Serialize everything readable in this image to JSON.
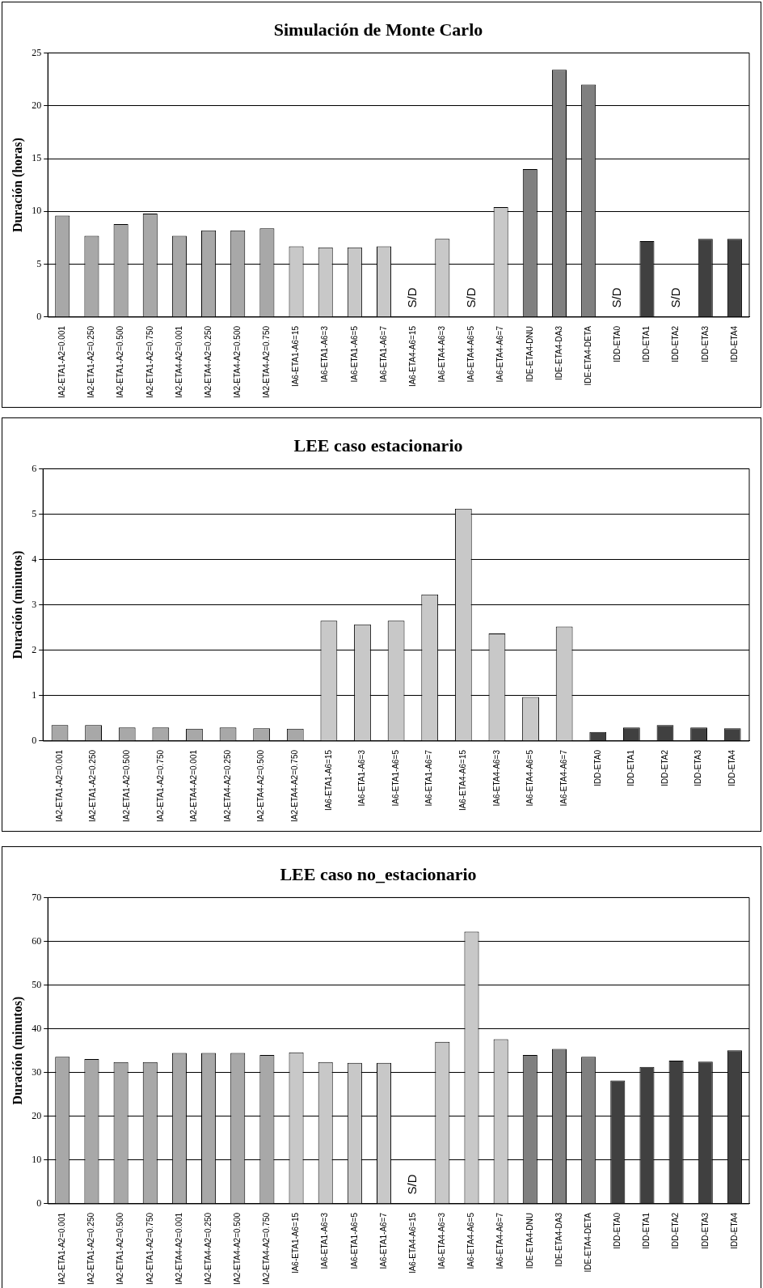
{
  "chart_data": [
    {
      "type": "bar",
      "title": "Simulación de Monte Carlo",
      "ylabel": "Duración (horas)",
      "categories": [
        "IA2-ETA1-A2=0.001",
        "IA2-ETA1-A2=0.250",
        "IA2-ETA1-A2=0.500",
        "IA2-ETA1-A2=0.750",
        "IA2-ETA4-A2=0.001",
        "IA2-ETA4-A2=0.250",
        "IA2-ETA4-A2=0.500",
        "IA2-ETA4-A2=0.750",
        "IA6-ETA1-A6=15",
        "IA6-ETA1-A6=3",
        "IA6-ETA1-A6=5",
        "IA6-ETA1-A6=7",
        "IA6-ETA4-A6=15",
        "IA6-ETA4-A6=3",
        "IA6-ETA4-A6=5",
        "IA6-ETA4-A6=7",
        "IDE-ETA4-DNU",
        "IDE-ETA4-DA3",
        "IDE-ETA4-DETA",
        "IDD-ETA0",
        "IDD-ETA1",
        "IDD-ETA2",
        "IDD-ETA3",
        "IDD-ETA4"
      ],
      "values": [
        9.6,
        7.7,
        8.8,
        9.8,
        7.7,
        8.2,
        8.2,
        8.4,
        6.7,
        6.6,
        6.6,
        6.7,
        null,
        7.4,
        null,
        10.4,
        14.0,
        23.4,
        22.0,
        null,
        7.2,
        null,
        7.4,
        7.4
      ],
      "colors": [
        "#a8a8a8",
        "#a8a8a8",
        "#a8a8a8",
        "#a8a8a8",
        "#a8a8a8",
        "#a8a8a8",
        "#a8a8a8",
        "#a8a8a8",
        "#c8c8c8",
        "#c8c8c8",
        "#c8c8c8",
        "#c8c8c8",
        "#c8c8c8",
        "#c8c8c8",
        "#c8c8c8",
        "#c8c8c8",
        "#808080",
        "#808080",
        "#808080",
        "#404040",
        "#404040",
        "#404040",
        "#404040",
        "#404040"
      ],
      "value_labels": [
        null,
        null,
        null,
        null,
        null,
        null,
        null,
        null,
        null,
        null,
        null,
        null,
        "S/D",
        null,
        "S/D",
        null,
        null,
        null,
        null,
        "S/D",
        null,
        "S/D",
        null,
        null
      ],
      "ylim": [
        0,
        25
      ],
      "yticks": [
        0,
        5,
        10,
        15,
        20,
        25
      ],
      "grid": "y"
    },
    {
      "type": "bar",
      "title": "LEE caso estacionario",
      "ylabel": "Duración (minutos)",
      "categories": [
        "IA2-ETA1-A2=0.001",
        "IA2-ETA1-A2=0.250",
        "IA2-ETA1-A2=0.500",
        "IA2-ETA1-A2=0.750",
        "IA2-ETA4-A2=0.001",
        "IA2-ETA4-A2=0.250",
        "IA2-ETA4-A2=0.500",
        "IA2-ETA4-A2=0.750",
        "IA6-ETA1-A6=15",
        "IA6-ETA1-A6=3",
        "IA6-ETA1-A6=5",
        "IA6-ETA1-A6=7",
        "IA6-ETA4-A6=15",
        "IA6-ETA4-A6=3",
        "IA6-ETA4-A6=5",
        "IA6-ETA4-A6=7",
        "IDD-ETA0",
        "IDD-ETA1",
        "IDD-ETA2",
        "IDD-ETA3",
        "IDD-ETA4"
      ],
      "values": [
        0.35,
        0.35,
        0.3,
        0.3,
        0.27,
        0.3,
        0.28,
        0.27,
        2.65,
        2.57,
        2.65,
        3.23,
        5.12,
        2.37,
        0.97,
        2.52,
        0.2,
        0.3,
        0.35,
        0.3,
        0.28
      ],
      "colors": [
        "#a8a8a8",
        "#a8a8a8",
        "#a8a8a8",
        "#a8a8a8",
        "#a8a8a8",
        "#a8a8a8",
        "#a8a8a8",
        "#a8a8a8",
        "#c8c8c8",
        "#c8c8c8",
        "#c8c8c8",
        "#c8c8c8",
        "#c8c8c8",
        "#c8c8c8",
        "#c8c8c8",
        "#c8c8c8",
        "#404040",
        "#404040",
        "#404040",
        "#404040",
        "#404040"
      ],
      "ylim": [
        0,
        6
      ],
      "yticks": [
        0,
        1,
        2,
        3,
        4,
        5,
        6
      ],
      "grid": "y"
    },
    {
      "type": "bar",
      "title": "LEE caso no_estacionario",
      "ylabel": "Duración (minutos)",
      "categories": [
        "IA2-ETA1-A2=0.001",
        "IA2-ETA1-A2=0.250",
        "IA2-ETA1-A2=0.500",
        "IA2-ETA1-A2=0.750",
        "IA2-ETA4-A2=0.001",
        "IA2-ETA4-A2=0.250",
        "IA2-ETA4-A2=0.500",
        "IA2-ETA4-A2=0.750",
        "IA6-ETA1-A6=15",
        "IA6-ETA1-A6=3",
        "IA6-ETA1-A6=5",
        "IA6-ETA1-A6=7",
        "IA6-ETA4-A6=15",
        "IA6-ETA4-A6=3",
        "IA6-ETA4-A6=5",
        "IA6-ETA4-A6=7",
        "IDE-ETA4-DNU",
        "IDE-ETA4-DA3",
        "IDE-ETA4-DETA",
        "IDD-ETA0",
        "IDD-ETA1",
        "IDD-ETA2",
        "IDD-ETA3",
        "IDD-ETA4"
      ],
      "values": [
        33.6,
        33.1,
        32.4,
        32.4,
        34.5,
        34.5,
        34.5,
        34.0,
        34.6,
        32.4,
        32.2,
        32.2,
        null,
        37.0,
        62.2,
        37.6,
        34.0,
        35.4,
        33.6,
        28.2,
        31.3,
        32.7,
        32.5,
        35.1
      ],
      "colors": [
        "#a8a8a8",
        "#a8a8a8",
        "#a8a8a8",
        "#a8a8a8",
        "#a8a8a8",
        "#a8a8a8",
        "#a8a8a8",
        "#a8a8a8",
        "#c8c8c8",
        "#c8c8c8",
        "#c8c8c8",
        "#c8c8c8",
        "#c8c8c8",
        "#c8c8c8",
        "#c8c8c8",
        "#c8c8c8",
        "#808080",
        "#808080",
        "#808080",
        "#404040",
        "#404040",
        "#404040",
        "#404040",
        "#404040"
      ],
      "value_labels": [
        null,
        null,
        null,
        null,
        null,
        null,
        null,
        null,
        null,
        null,
        null,
        null,
        "S/D",
        null,
        null,
        null,
        null,
        null,
        null,
        null,
        null,
        null,
        null,
        null
      ],
      "ylim": [
        0,
        70
      ],
      "yticks": [
        0,
        10,
        20,
        30,
        40,
        50,
        60,
        70
      ],
      "grid": "y"
    }
  ]
}
